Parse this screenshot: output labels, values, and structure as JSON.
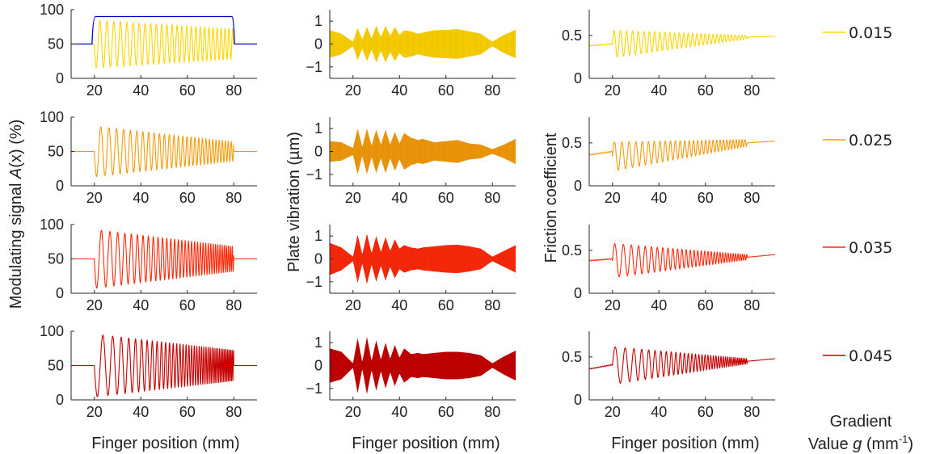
{
  "figure": {
    "xlabel": "Finger position (mm)",
    "ylabel_modulating_prefix": "Modulating signal ",
    "ylabel_modulating_var": "A",
    "ylabel_modulating_suffix": "(x)    (%)",
    "ylabel_vibration": "Plate vibration  (µm)",
    "ylabel_friction": "Friction coefficient",
    "legend_title_line1": "Gradient",
    "legend_title_line2_prefix": "Value ",
    "legend_title_line2_var": "g",
    "legend_title_line2_unit": " (mm",
    "legend_title_line2_exp": "-1",
    "legend_title_line2_close": ")"
  },
  "colors": {
    "g0015": "#FFD500",
    "g0025": "#F59B0B",
    "g0035": "#FF2A0A",
    "g0045": "#C60000",
    "target_trace": "#0000CC",
    "axes": "#262626"
  },
  "chart_data": [
    {
      "type": "line",
      "panel": "modulating-signal",
      "xlim": [
        10,
        90
      ],
      "ylim": [
        0,
        100
      ],
      "x_ticks": [
        "20",
        "40",
        "60",
        "80"
      ],
      "y_ticks": [
        "0",
        "50",
        "100"
      ],
      "grid": false,
      "rows": [
        {
          "gradient": "0.015",
          "color": "#FFD500",
          "baseline": 50,
          "start": 20,
          "end": 80,
          "amp_start": 35,
          "amp_end": 22,
          "first_cycle": 3.2,
          "last_cycle": 1.6,
          "overlay": {
            "name": "",
            "color": "#0000CC",
            "level": 90,
            "baseline": 50,
            "start": 19,
            "end": 80
          }
        },
        {
          "gradient": "0.025",
          "color": "#F59B0B",
          "baseline": 50,
          "start": 20,
          "end": 80,
          "amp_start": 37,
          "amp_end": 14,
          "first_cycle": 3.8,
          "last_cycle": 1.2
        },
        {
          "gradient": "0.035",
          "color": "#FF2A0A",
          "baseline": 50,
          "start": 20,
          "end": 80,
          "amp_start": 43,
          "amp_end": 18,
          "first_cycle": 4.2,
          "last_cycle": 0.8
        },
        {
          "gradient": "0.045",
          "color": "#C60000",
          "baseline": 50,
          "start": 20,
          "end": 80,
          "amp_start": 46,
          "amp_end": 22,
          "first_cycle": 5.2,
          "last_cycle": 0.6
        }
      ]
    },
    {
      "type": "area",
      "panel": "plate-vibration",
      "xlim": [
        10,
        90
      ],
      "ylim": [
        -1.5,
        1.5
      ],
      "x_ticks": [
        "20",
        "40",
        "60",
        "80"
      ],
      "y_ticks": [
        "-1",
        "0",
        "1"
      ],
      "grid": false,
      "envelope_x": [
        10,
        15,
        20,
        22,
        24,
        26,
        28,
        30,
        32,
        34,
        36,
        38,
        40,
        42,
        45,
        48,
        50,
        55,
        60,
        65,
        70,
        75,
        80,
        85,
        90
      ],
      "rows": [
        {
          "gradient": "0.015",
          "color": "#FFD500",
          "envelope": [
            0.6,
            0.45,
            0.1,
            0.7,
            0.2,
            0.75,
            0.25,
            0.8,
            0.3,
            0.8,
            0.35,
            0.75,
            0.4,
            0.6,
            0.55,
            0.45,
            0.5,
            0.6,
            0.62,
            0.65,
            0.55,
            0.45,
            0.1,
            0.4,
            0.62
          ]
        },
        {
          "gradient": "0.025",
          "color": "#F59B0B",
          "envelope": [
            0.45,
            0.4,
            0.15,
            1.0,
            0.2,
            1.0,
            0.25,
            0.95,
            0.3,
            0.95,
            0.3,
            0.85,
            0.35,
            0.8,
            0.6,
            0.5,
            0.55,
            0.4,
            0.45,
            0.5,
            0.35,
            0.3,
            0.1,
            0.3,
            0.55
          ]
        },
        {
          "gradient": "0.035",
          "color": "#FF2A0A",
          "envelope": [
            0.7,
            0.5,
            0.1,
            1.05,
            0.2,
            1.1,
            0.25,
            1.0,
            0.3,
            0.95,
            0.35,
            0.85,
            0.45,
            0.6,
            0.5,
            0.45,
            0.5,
            0.55,
            0.6,
            0.62,
            0.55,
            0.45,
            0.1,
            0.35,
            0.6
          ]
        },
        {
          "gradient": "0.045",
          "color": "#C60000",
          "envelope": [
            0.75,
            0.6,
            0.1,
            1.2,
            0.15,
            1.25,
            0.2,
            1.1,
            0.25,
            1.0,
            0.3,
            0.9,
            0.35,
            0.75,
            0.5,
            0.55,
            0.5,
            0.55,
            0.6,
            0.6,
            0.55,
            0.45,
            0.1,
            0.4,
            0.65
          ]
        }
      ]
    },
    {
      "type": "line",
      "panel": "friction-coefficient",
      "xlim": [
        10,
        90
      ],
      "ylim": [
        0,
        0.8
      ],
      "x_ticks": [
        "20",
        "40",
        "60",
        "80"
      ],
      "y_ticks": [
        "0",
        "0.5"
      ],
      "grid": false,
      "rows": [
        {
          "gradient": "0.015",
          "color": "#FFD500",
          "pre": 0.38,
          "pre_end": 0.4,
          "start": 20,
          "end": 78,
          "mean_start": 0.4,
          "mean_end": 0.48,
          "amp_start": 0.16,
          "amp_end": 0.02,
          "first_cycle": 2.8,
          "last_cycle": 1.4,
          "post": 0.49
        },
        {
          "gradient": "0.025",
          "color": "#F59B0B",
          "pre": 0.36,
          "pre_end": 0.4,
          "start": 20,
          "end": 78,
          "mean_start": 0.34,
          "mean_end": 0.5,
          "amp_start": 0.17,
          "amp_end": 0.04,
          "first_cycle": 3.4,
          "last_cycle": 1.2,
          "post": 0.52
        },
        {
          "gradient": "0.035",
          "color": "#FF2A0A",
          "pre": 0.38,
          "pre_end": 0.4,
          "start": 20,
          "end": 78,
          "mean_start": 0.38,
          "mean_end": 0.42,
          "amp_start": 0.2,
          "amp_end": 0.03,
          "first_cycle": 4.0,
          "last_cycle": 0.9,
          "post": 0.45
        },
        {
          "gradient": "0.045",
          "color": "#C60000",
          "pre": 0.36,
          "pre_end": 0.41,
          "start": 20,
          "end": 78,
          "mean_start": 0.4,
          "mean_end": 0.45,
          "amp_start": 0.22,
          "amp_end": 0.03,
          "first_cycle": 4.8,
          "last_cycle": 0.7,
          "post": 0.48
        }
      ]
    }
  ],
  "legend": [
    {
      "label": "0.015",
      "color": "#FFD500"
    },
    {
      "label": "0.025",
      "color": "#F59B0B"
    },
    {
      "label": "0.035",
      "color": "#FF2A0A"
    },
    {
      "label": "0.045",
      "color": "#C60000"
    }
  ]
}
